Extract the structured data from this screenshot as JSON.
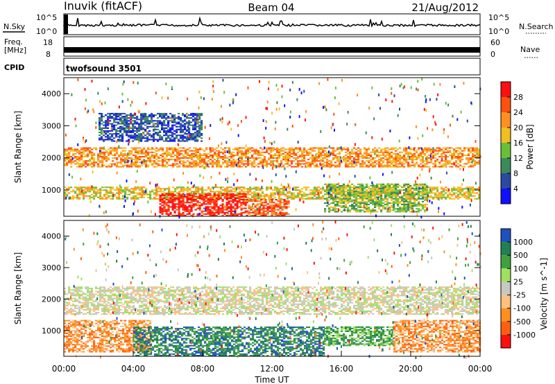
{
  "header": {
    "station": "Inuvik (fitACF)",
    "beam": "Beam 04",
    "date": "21/Aug/2012"
  },
  "nsky_panel": {
    "label": "N.Sky",
    "left_ticks": [
      "10^5",
      "10^0"
    ],
    "right_ticks": [
      "10^5",
      "10^0"
    ],
    "right_label": "N.Search"
  },
  "freq_panel": {
    "label_line1": "Freq.",
    "label_line2": "[MHz]",
    "left_ticks": [
      "18",
      "8"
    ],
    "right_ticks": [
      "60",
      "0"
    ],
    "right_label": "Nave"
  },
  "cpid_panel": {
    "label": "CPID",
    "value": "twofsound 3501"
  },
  "chart_data": [
    {
      "type": "heatmap",
      "name": "Power",
      "ylabel": "Slant Range [km]",
      "ylim": [
        180,
        4500
      ],
      "yticks": [
        "1000",
        "2000",
        "3000",
        "4000"
      ],
      "colorbar_label": "Power [dB]",
      "colorbar_ticks": [
        "4",
        "8",
        "12",
        "16",
        "20",
        "24",
        "28"
      ],
      "colors": [
        "#1010ff",
        "#2a4aa0",
        "#3a8a5a",
        "#6abf3a",
        "#f0c020",
        "#ff9020",
        "#ff5010",
        "#ff1010"
      ],
      "bands": [
        {
          "t": [
            0,
            24
          ],
          "r": [
            1700,
            2300
          ],
          "level": 5
        },
        {
          "t": [
            0,
            24
          ],
          "r": [
            700,
            1100
          ],
          "level": 4
        },
        {
          "t": [
            5.5,
            10.5
          ],
          "r": [
            180,
            900
          ],
          "level": 7
        },
        {
          "t": [
            10.5,
            13
          ],
          "r": [
            180,
            700
          ],
          "level": 6
        },
        {
          "t": [
            15,
            21
          ],
          "r": [
            300,
            1200
          ],
          "level": 3
        },
        {
          "t": [
            2,
            8
          ],
          "r": [
            2500,
            3400
          ],
          "level": 1
        }
      ]
    },
    {
      "type": "heatmap",
      "name": "Velocity",
      "ylabel": "Slant Range [km]",
      "ylim": [
        180,
        4500
      ],
      "yticks": [
        "1000",
        "2000",
        "3000",
        "4000"
      ],
      "xlabel": "Time UT",
      "xticks": [
        "00:00",
        "04:00",
        "08:00",
        "12:00",
        "16:00",
        "20:00",
        "00:00"
      ],
      "xlim": [
        0,
        24
      ],
      "colorbar_label": "Velocity [m s^-1]",
      "colorbar_ticks": [
        "1000",
        "500",
        "100",
        "25",
        "-25",
        "-100",
        "-500",
        "-1000"
      ],
      "colors": [
        "#2050c0",
        "#208050",
        "#40a040",
        "#a0e060",
        "#c8c8c0",
        "#ffc080",
        "#ff9020",
        "#ff6010",
        "#ff1010"
      ],
      "bands": [
        {
          "t": [
            0,
            24
          ],
          "r": [
            1500,
            2400
          ],
          "level": 4
        },
        {
          "t": [
            0,
            5
          ],
          "r": [
            300,
            1300
          ],
          "level": 6
        },
        {
          "t": [
            4,
            15
          ],
          "r": [
            180,
            1100
          ],
          "level": 1
        },
        {
          "t": [
            15,
            19
          ],
          "r": [
            500,
            1100
          ],
          "level": 2
        },
        {
          "t": [
            19,
            24
          ],
          "r": [
            300,
            1300
          ],
          "level": 6
        }
      ]
    }
  ]
}
